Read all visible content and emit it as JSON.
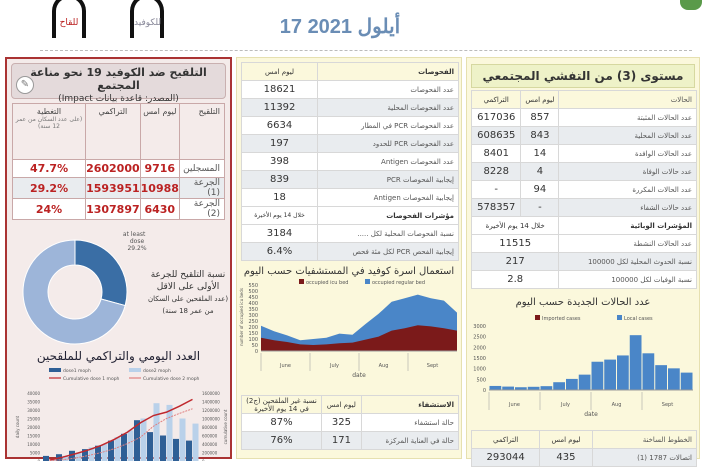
{
  "header": {
    "date": "17 أيلول 2021",
    "hotline_vaccine_label": "للقاح",
    "hotline_covid_label": "للكوفيد"
  },
  "community": {
    "title": "مستوى (3) من التفشي المجتمعي",
    "columns": [
      "الحالات",
      "ليوم امس",
      "التراكمي"
    ],
    "rows": [
      {
        "label": "عدد الحالات المثبتة",
        "yesterday": "857",
        "cumulative": "617036"
      },
      {
        "label": "عدد الحالات المحلية",
        "yesterday": "843",
        "cumulative": "608635"
      },
      {
        "label": "عدد الحالات الوافدة",
        "yesterday": "14",
        "cumulative": "8401"
      },
      {
        "label": "عدد حالات الوفاة",
        "yesterday": "4",
        "cumulative": "8228"
      },
      {
        "label": "عدد الحالات المكررة",
        "yesterday": "94",
        "cumulative": "-"
      },
      {
        "label": "عدد حالات الشفاء",
        "yesterday": "-",
        "cumulative": "578357"
      }
    ],
    "indicators_header": "المؤشرات الوبائية",
    "indicators_period": "خلال 14 يوم الأخيرة",
    "indicators": [
      {
        "label": "عدد الحالات النشطة",
        "value": "11515"
      },
      {
        "label": "نسبة الحدوث المحلية لكل 100000",
        "value": "217"
      },
      {
        "label": "نسبة الوفيات لكل 100000",
        "value": "2.8"
      }
    ]
  },
  "tests": {
    "columns": [
      "الفحوصات",
      "ليوم امس"
    ],
    "rows": [
      {
        "label": "عدد الفحوصات",
        "value": "18621"
      },
      {
        "label": "عدد الفحوصات المحلية",
        "value": "11392"
      },
      {
        "label": "عدد الفحوصات PCR في المطار",
        "value": "6634"
      },
      {
        "label": "عدد الفحوصات PCR للحدود",
        "value": "197"
      },
      {
        "label": "عدد الفحوصات Antigen",
        "value": "398"
      },
      {
        "label": "إيجابية الفحوصات PCR",
        "value": "839"
      },
      {
        "label": "إيجابية الفحوصات Antigen",
        "value": "18"
      }
    ],
    "indicators_header": "مؤشرات الفحوصات",
    "indicators_period": "خلال 14 يوم الأخيرة",
    "indicators": [
      {
        "label": "نسبة الفحوصات المحلية لكل .....",
        "value": "3184"
      },
      {
        "label": "إيجابية الفحص PCR لكل مئة فحص",
        "value": "6.4%"
      }
    ],
    "hospital_caption": "استعمال اسرة كوفيد في المستشفيات حسب اليوم"
  },
  "hospital": {
    "columns": [
      "الاستشفاء",
      "ليوم امس",
      "نسبة غير الملقحين (ج2) في 14 يوم الأخيرة"
    ],
    "rows": [
      {
        "label": "حالة استشفاء",
        "yesterday": "325",
        "unvaccinated": "87%"
      },
      {
        "label": "حالة في العناية المركزة",
        "yesterday": "171",
        "unvaccinated": "76%"
      }
    ]
  },
  "cases_caption": "عدد الحالات الجديدة حسب اليوم",
  "lines": {
    "columns": [
      "الخطوط الساخنة",
      "ليوم امس",
      "التراكمي"
    ],
    "rows": [
      {
        "label": "اتصالات 1787 (1)",
        "yesterday": "435",
        "cumulative": "293044"
      }
    ]
  },
  "vaccination": {
    "title": "التلقيح ضد الكوفيد 19 نحو مناعة المجتمع",
    "source": "(المصدر: قاعدة بيانات Impact)",
    "columns": [
      "التلقيح",
      "ليوم امس",
      "التراكمي",
      "التغطية"
    ],
    "coverage_note": "(على عدد السكان من عمر 12 سنة)",
    "rows": [
      {
        "label": "المسجلين",
        "yesterday": "9716",
        "cumulative": "2602000",
        "coverage": "47.7%"
      },
      {
        "label": "الجرعة (1)",
        "yesterday": "10988",
        "cumulative": "1593951",
        "coverage": "29.2%"
      },
      {
        "label": "الجرعة (2)",
        "yesterday": "6430",
        "cumulative": "1307897",
        "coverage": "24%"
      }
    ],
    "donut_text": [
      "نسبة التلقيح للجرعة",
      "الأولى على الاقل",
      "(عدد الملقحين على السكان",
      "من عمر 18 سنة)"
    ],
    "chart_title": "العدد اليومي والتراكمي للملقحين"
  },
  "chart_data": [
    {
      "type": "pie",
      "variant": "donut",
      "labels": [
        "at least 1 dose",
        ""
      ],
      "values": [
        29.2,
        70.8
      ],
      "data_label": "at least 1 dose 29.2%",
      "colors": [
        "#3a6ea5",
        "#9db5d9"
      ]
    },
    {
      "type": "area",
      "xlabel": "date",
      "ylabel": "number of occupied icu beds",
      "ylim": [
        0,
        550
      ],
      "yticks": [
        0,
        50,
        100,
        150,
        200,
        250,
        300,
        350,
        400,
        450,
        500,
        550
      ],
      "x_groups": [
        "June",
        "July",
        "Aug",
        "Sept"
      ],
      "x": [
        "Jun 1",
        "Jun 8",
        "Jun 15",
        "Jun 22",
        "Jun 29",
        "Jul 6",
        "Jul 13",
        "Jul 20",
        "Jul 27",
        "Aug 3",
        "Aug 10",
        "Aug 17",
        "Aug 24",
        "Aug 31",
        "Sep 7",
        "Sep 15"
      ],
      "series": [
        {
          "name": "occupied icu bed",
          "color": "#7b1a1a",
          "values": [
            110,
            90,
            75,
            55,
            50,
            55,
            65,
            70,
            95,
            120,
            170,
            190,
            215,
            205,
            190,
            170
          ]
        },
        {
          "name": "occupied regular bed",
          "color": "#4a86c8",
          "values": [
            100,
            75,
            55,
            35,
            50,
            55,
            80,
            65,
            130,
            190,
            240,
            250,
            255,
            235,
            230,
            150
          ]
        }
      ]
    },
    {
      "type": "bar",
      "stacked": true,
      "xlabel": "date",
      "ylim": [
        0,
        3000
      ],
      "yticks": [
        0,
        500,
        1000,
        1500,
        2000,
        2500,
        3000
      ],
      "x_groups": [
        "June",
        "July",
        "Aug",
        "Sept"
      ],
      "x": [
        "Jun 1",
        "Jun 8",
        "Jun 15",
        "Jun 22",
        "Jun 29",
        "Jul 6",
        "Jul 13",
        "Jul 20",
        "Jul 27",
        "Aug 3",
        "Aug 10",
        "Aug 17",
        "Aug 24",
        "Aug 31",
        "Sep 7",
        "Sep 15"
      ],
      "series": [
        {
          "name": "Imported cases",
          "color": "#7b1a1a",
          "values": [
            10,
            10,
            10,
            10,
            10,
            15,
            20,
            20,
            25,
            25,
            20,
            20,
            20,
            15,
            15,
            15
          ]
        },
        {
          "name": "Local cases",
          "color": "#4a86c8",
          "values": [
            180,
            150,
            120,
            140,
            170,
            350,
            500,
            700,
            1300,
            1400,
            1600,
            2550,
            1700,
            1150,
            1000,
            800
          ]
        }
      ]
    },
    {
      "type": "bar",
      "xlabel": "",
      "ylabel": "daily count",
      "y2label": "cumulative count",
      "ylim": [
        0,
        40000
      ],
      "y2lim": [
        0,
        1600000
      ],
      "yticks": [
        0,
        5000,
        10000,
        15000,
        20000,
        25000,
        30000,
        35000,
        40000
      ],
      "y2ticks": [
        0,
        200000,
        400000,
        600000,
        800000,
        1000000,
        1200000,
        1400000,
        1600000
      ],
      "series": [
        {
          "name": "dose1 moph",
          "type": "bar",
          "color": "#2f5f95",
          "values": [
            3000,
            4000,
            6000,
            7000,
            9000,
            12000,
            16000,
            24000,
            17000,
            15000,
            13000,
            12000
          ]
        },
        {
          "name": "dose2 moph",
          "type": "bar",
          "color": "#b9d1ea",
          "values": [
            1000,
            3000,
            5000,
            8000,
            10000,
            14000,
            18000,
            25000,
            34000,
            33000,
            25000,
            22000
          ]
        },
        {
          "name": "Cumulative dose 1 moph",
          "type": "line",
          "color": "#c0282d",
          "values": [
            20000,
            90000,
            170000,
            260000,
            370000,
            510000,
            680000,
            900000,
            1070000,
            1150000,
            1290000,
            1450000
          ]
        },
        {
          "name": "Cumulative dose 2 moph",
          "type": "line",
          "color": "#e08080",
          "values": [
            5000,
            30000,
            70000,
            130000,
            200000,
            290000,
            410000,
            560000,
            820000,
            1000000,
            1120000,
            1230000
          ]
        }
      ]
    }
  ]
}
